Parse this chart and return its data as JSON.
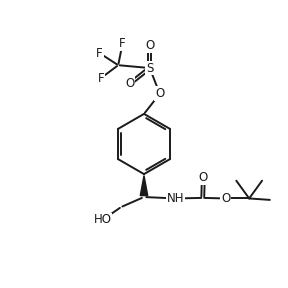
{
  "bg_color": "#ffffff",
  "line_color": "#1a1a1a",
  "line_width": 1.4,
  "font_size": 8.5,
  "fig_size": [
    2.88,
    2.88
  ],
  "dpi": 100,
  "xlim": [
    0,
    10
  ],
  "ylim": [
    0,
    10
  ]
}
